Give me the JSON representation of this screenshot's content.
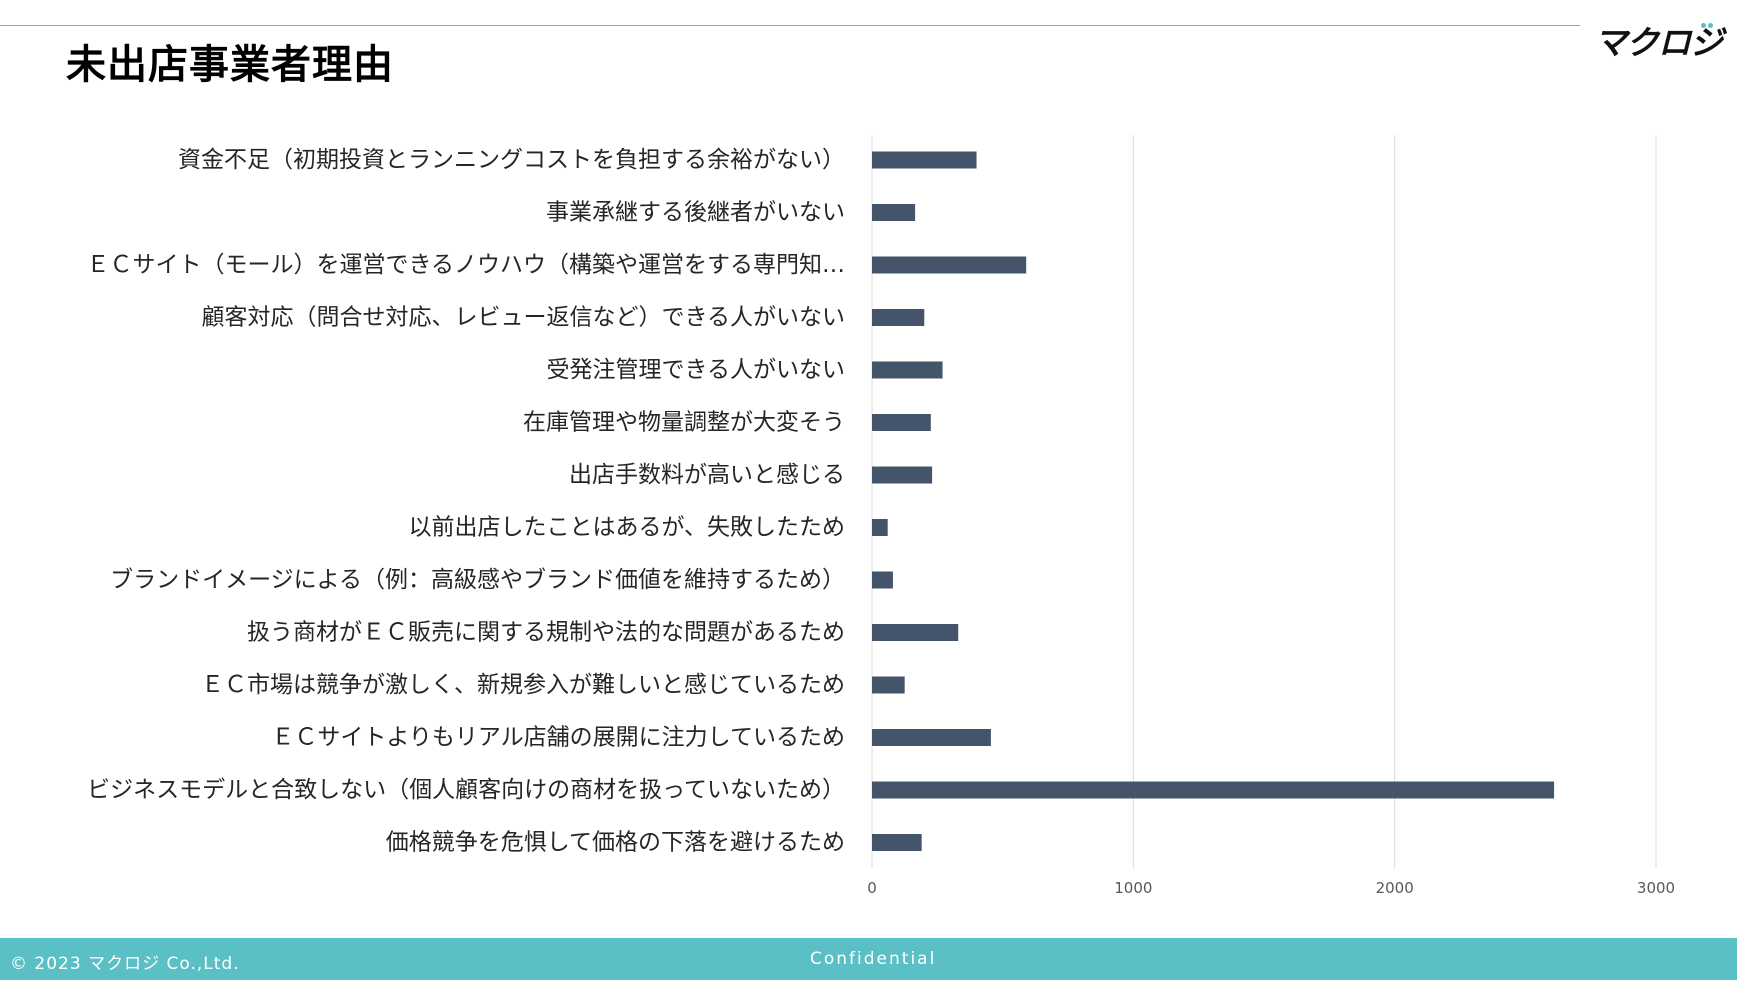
{
  "header": {
    "title": "未出店事業者理由",
    "logo_text": "マクロジ"
  },
  "footer": {
    "copyright": "© 2023 マクロジ Co.,Ltd.",
    "confidential": "Confidential"
  },
  "colors": {
    "accent": "#5bbfc6",
    "bar": "#44546a",
    "grid": "#d9d9d9"
  },
  "chart_data": {
    "type": "bar",
    "orientation": "horizontal",
    "title": "",
    "xlabel": "",
    "ylabel": "",
    "xlim": [
      0,
      3000
    ],
    "ticks": [
      0,
      1000,
      2000,
      3000
    ],
    "tick_labels": [
      "0",
      "1000",
      "2000",
      "3000"
    ],
    "grid": true,
    "categories": [
      "資金不足（初期投資とランニングコストを負担する余裕がない）",
      "事業承継する後継者がいない",
      "ＥＣサイト（モール）を運営できるノウハウ（構築や運営をする専門知…",
      "顧客対応（問合せ対応、レビュー返信など）できる人がいない",
      "受発注管理できる人がいない",
      "在庫管理や物量調整が大変そう",
      "出店手数料が高いと感じる",
      "以前出店したことはあるが、失敗したため",
      "ブランドイメージによる（例：高級感やブランド価値を維持するため）",
      "扱う商材がＥＣ販売に関する規制や法的な問題があるため",
      "ＥＣ市場は競争が激しく、新規参入が難しいと感じているため",
      "ＥＣサイトよりもリアル店舗の展開に注力しているため",
      "ビジネスモデルと合致しない（個人顧客向けの商材を扱っていないため）",
      "価格競争を危惧して価格の下落を避けるため"
    ],
    "values": [
      400,
      165,
      590,
      200,
      270,
      225,
      230,
      60,
      80,
      330,
      125,
      455,
      2610,
      190
    ]
  }
}
